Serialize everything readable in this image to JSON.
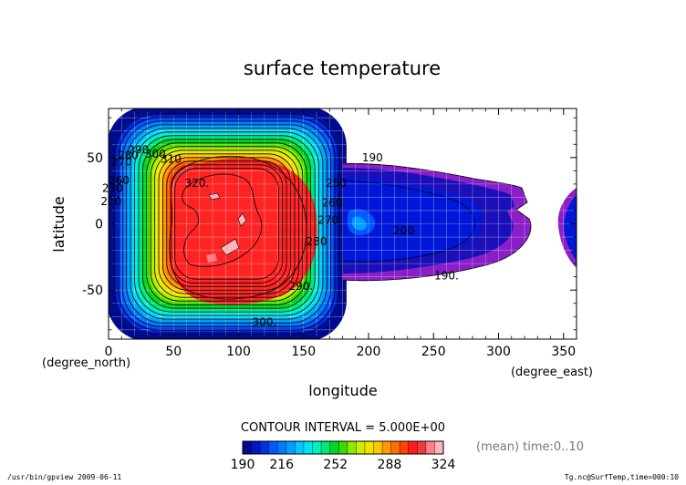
{
  "chart_data": {
    "type": "heatmap",
    "title": "surface temperature",
    "xlabel": "longitude",
    "ylabel": "latitude",
    "x_unit": "(degree_east)",
    "y_unit": "(degree_north)",
    "xlim": [
      0,
      360
    ],
    "ylim": [
      -87,
      87
    ],
    "x_ticks": [
      0,
      50,
      100,
      150,
      200,
      250,
      300,
      350
    ],
    "y_ticks": [
      -50,
      0,
      50
    ],
    "grid": true,
    "contour_interval_text": "CONTOUR INTERVAL = 5.000E+00",
    "colorbar": {
      "min": 190,
      "max": 324,
      "tick_labels": [
        "190",
        "216",
        "252",
        "288",
        "324"
      ],
      "tick_values": [
        190,
        216,
        252,
        288,
        324
      ],
      "colors": [
        "#000a8c",
        "#0016bf",
        "#0030e8",
        "#0058ff",
        "#007cff",
        "#00a0ff",
        "#00c8ff",
        "#00e6f0",
        "#00f0c0",
        "#00e878",
        "#00d628",
        "#38de00",
        "#8ce800",
        "#c8f000",
        "#f0e600",
        "#ffc800",
        "#ff9a00",
        "#ff6e00",
        "#ff4600",
        "#ff1e1e",
        "#f03c3c",
        "#ff7e8c",
        "#ffb4be"
      ]
    },
    "contour_labels": [
      {
        "text": "320.",
        "lon": 68,
        "lat": 28
      },
      {
        "text": "310",
        "lon": 48,
        "lat": 46
      },
      {
        "text": "300",
        "lon": 36,
        "lat": 50
      },
      {
        "text": "290",
        "lon": 23,
        "lat": 53
      },
      {
        "text": "280",
        "lon": 15,
        "lat": 49
      },
      {
        "text": "270",
        "lon": 10,
        "lat": 44
      },
      {
        "text": "260",
        "lon": 8,
        "lat": 30
      },
      {
        "text": "230",
        "lon": 3,
        "lat": 24
      },
      {
        "text": "210",
        "lon": 2,
        "lat": 14
      },
      {
        "text": "300.",
        "lon": 120,
        "lat": -77
      },
      {
        "text": "290.",
        "lon": 148,
        "lat": -50
      },
      {
        "text": "280",
        "lon": 160,
        "lat": -16
      },
      {
        "text": "270",
        "lon": 169,
        "lat": 0
      },
      {
        "text": "260",
        "lon": 172,
        "lat": 13
      },
      {
        "text": "250",
        "lon": 175,
        "lat": 28
      },
      {
        "text": "190",
        "lon": 203,
        "lat": 47
      },
      {
        "text": "200",
        "lon": 227,
        "lat": -8
      },
      {
        "text": "190.",
        "lon": 260,
        "lat": -42
      }
    ]
  },
  "annotations": {
    "mean_time": "(mean) time:0..10",
    "footer_left": "/usr/bin/gpview  2009-06-11",
    "footer_right": "Tg.nc@SurfTemp,time=000:10"
  }
}
